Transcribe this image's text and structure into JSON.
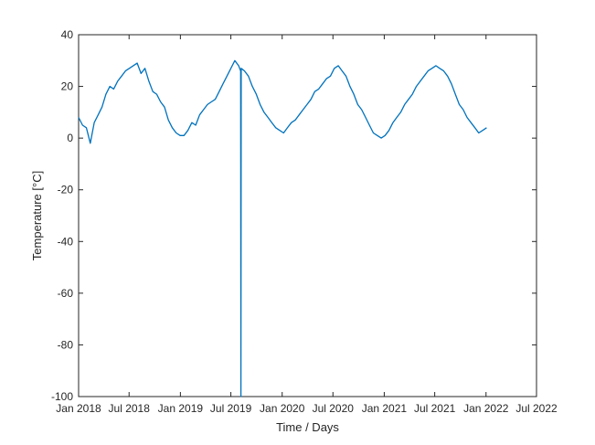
{
  "chart_data": {
    "type": "line",
    "title": "",
    "xlabel": "Time / Days",
    "ylabel": "Temperature [°C]",
    "xlim": [
      "2018-01-01",
      "2022-07-01"
    ],
    "ylim": [
      -100,
      40
    ],
    "x_ticks": [
      {
        "date": "2018-01-01",
        "label": "Jan 2018"
      },
      {
        "date": "2018-07-01",
        "label": "Jul 2018"
      },
      {
        "date": "2019-01-01",
        "label": "Jan 2019"
      },
      {
        "date": "2019-07-01",
        "label": "Jul 2019"
      },
      {
        "date": "2020-01-01",
        "label": "Jan 2020"
      },
      {
        "date": "2020-07-01",
        "label": "Jul 2020"
      },
      {
        "date": "2021-01-01",
        "label": "Jan 2021"
      },
      {
        "date": "2021-07-01",
        "label": "Jul 2021"
      },
      {
        "date": "2022-01-01",
        "label": "Jan 2022"
      },
      {
        "date": "2022-07-01",
        "label": "Jul 2022"
      }
    ],
    "y_ticks": [
      {
        "value": 40,
        "label": "40"
      },
      {
        "value": 20,
        "label": "20"
      },
      {
        "value": 0,
        "label": "0"
      },
      {
        "value": -20,
        "label": "-20"
      },
      {
        "value": -40,
        "label": "-40"
      },
      {
        "value": -60,
        "label": "-60"
      },
      {
        "value": -80,
        "label": "-80"
      },
      {
        "value": -100,
        "label": "-100"
      }
    ],
    "grid": false,
    "series": [
      {
        "color": "#0072bd",
        "x": [
          "2018-01-01",
          "2018-01-15",
          "2018-01-29",
          "2018-02-12",
          "2018-02-26",
          "2018-03-12",
          "2018-03-26",
          "2018-04-09",
          "2018-04-23",
          "2018-05-07",
          "2018-05-21",
          "2018-06-04",
          "2018-06-18",
          "2018-07-02",
          "2018-07-16",
          "2018-07-30",
          "2018-08-13",
          "2018-08-27",
          "2018-09-10",
          "2018-09-24",
          "2018-10-08",
          "2018-10-22",
          "2018-11-05",
          "2018-11-19",
          "2018-12-03",
          "2018-12-17",
          "2018-12-31",
          "2019-01-14",
          "2019-01-28",
          "2019-02-11",
          "2019-02-25",
          "2019-03-11",
          "2019-03-25",
          "2019-04-08",
          "2019-04-22",
          "2019-05-06",
          "2019-05-20",
          "2019-06-03",
          "2019-06-17",
          "2019-07-01",
          "2019-07-15",
          "2019-07-29",
          "2019-08-05",
          "2019-08-06",
          "2019-08-07",
          "2019-08-19",
          "2019-09-02",
          "2019-09-16",
          "2019-09-30",
          "2019-10-14",
          "2019-10-28",
          "2019-11-11",
          "2019-11-25",
          "2019-12-09",
          "2019-12-23",
          "2020-01-06",
          "2020-01-20",
          "2020-02-03",
          "2020-02-17",
          "2020-03-02",
          "2020-03-16",
          "2020-03-30",
          "2020-04-13",
          "2020-04-27",
          "2020-05-11",
          "2020-05-25",
          "2020-06-08",
          "2020-06-22",
          "2020-07-06",
          "2020-07-20",
          "2020-08-03",
          "2020-08-17",
          "2020-08-31",
          "2020-09-14",
          "2020-09-28",
          "2020-10-12",
          "2020-10-26",
          "2020-11-09",
          "2020-11-23",
          "2020-12-07",
          "2020-12-21",
          "2021-01-04",
          "2021-01-18",
          "2021-02-01",
          "2021-02-15",
          "2021-03-01",
          "2021-03-15",
          "2021-03-29",
          "2021-04-12",
          "2021-04-26",
          "2021-05-10",
          "2021-05-24",
          "2021-06-07",
          "2021-06-21",
          "2021-07-05",
          "2021-07-19",
          "2021-08-02",
          "2021-08-16",
          "2021-08-30",
          "2021-09-13",
          "2021-09-27",
          "2021-10-11",
          "2021-10-25",
          "2021-11-08",
          "2021-11-22",
          "2021-12-06",
          "2021-12-20",
          "2022-01-03"
        ],
        "y": [
          8,
          5,
          4,
          -2,
          6,
          9,
          12,
          17,
          20,
          19,
          22,
          24,
          26,
          27,
          28,
          29,
          25,
          27,
          22,
          18,
          17,
          14,
          12,
          7,
          4,
          2,
          1,
          1,
          3,
          6,
          5,
          9,
          11,
          13,
          14,
          15,
          18,
          21,
          24,
          27,
          30,
          28,
          26,
          -100,
          27,
          26,
          24,
          20,
          17,
          13,
          10,
          8,
          6,
          4,
          3,
          2,
          4,
          6,
          7,
          9,
          11,
          13,
          15,
          18,
          19,
          21,
          23,
          24,
          27,
          28,
          26,
          24,
          20,
          17,
          13,
          11,
          8,
          5,
          2,
          1,
          0,
          1,
          3,
          6,
          8,
          10,
          13,
          15,
          17,
          20,
          22,
          24,
          26,
          27,
          28,
          27,
          26,
          24,
          21,
          17,
          13,
          11,
          8,
          6,
          4,
          2,
          3,
          4
        ]
      }
    ]
  }
}
